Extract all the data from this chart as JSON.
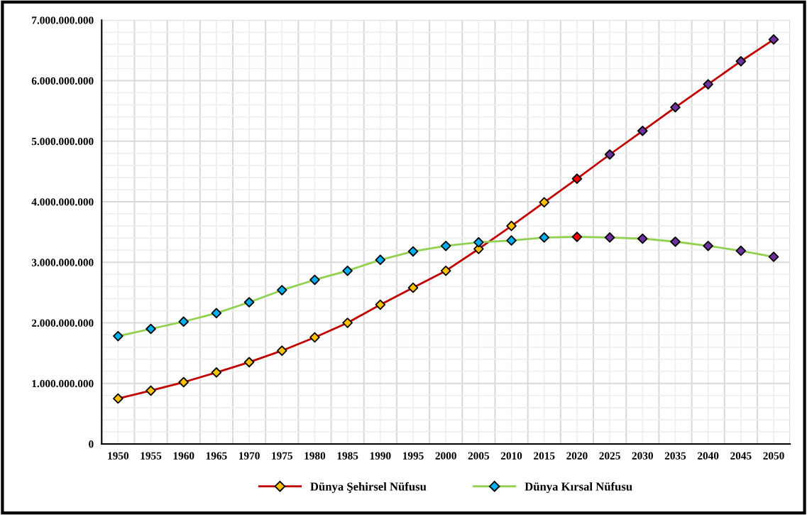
{
  "chart_data": {
    "type": "line",
    "categories": [
      "1950",
      "1955",
      "1960",
      "1965",
      "1970",
      "1975",
      "1980",
      "1985",
      "1990",
      "1995",
      "2000",
      "2005",
      "2010",
      "2015",
      "2020",
      "2025",
      "2030",
      "2035",
      "2040",
      "2045",
      "2050"
    ],
    "series": [
      {
        "name": "Dünya Şehirsel Nüfusu",
        "color": "#c00000",
        "colors": [
          "#ffc000",
          "#ffc000",
          "#ffc000",
          "#ffc000",
          "#ffc000",
          "#ffc000",
          "#ffc000",
          "#ffc000",
          "#ffc000",
          "#ffc000",
          "#ffc000",
          "#ffc000",
          "#ffc000",
          "#ffc000",
          "#ff0000",
          "#7030a0",
          "#7030a0",
          "#7030a0",
          "#7030a0",
          "#7030a0",
          "#7030a0"
        ],
        "values": [
          750000000,
          880000000,
          1020000000,
          1180000000,
          1350000000,
          1540000000,
          1760000000,
          2000000000,
          2300000000,
          2580000000,
          2860000000,
          3220000000,
          3600000000,
          3990000000,
          4380000000,
          4780000000,
          5170000000,
          5560000000,
          5940000000,
          6320000000,
          6680000000
        ]
      },
      {
        "name": "Dünya Kırsal Nüfusu",
        "color": "#92d050",
        "colors": [
          "#00b0f0",
          "#00b0f0",
          "#00b0f0",
          "#00b0f0",
          "#00b0f0",
          "#00b0f0",
          "#00b0f0",
          "#00b0f0",
          "#00b0f0",
          "#00b0f0",
          "#00b0f0",
          "#00b0f0",
          "#00b0f0",
          "#00b0f0",
          "#ff0000",
          "#7030a0",
          "#7030a0",
          "#7030a0",
          "#7030a0",
          "#7030a0",
          "#7030a0"
        ],
        "values": [
          1780000000,
          1900000000,
          2020000000,
          2160000000,
          2340000000,
          2540000000,
          2710000000,
          2860000000,
          3040000000,
          3180000000,
          3270000000,
          3330000000,
          3360000000,
          3410000000,
          3420000000,
          3410000000,
          3390000000,
          3340000000,
          3270000000,
          3190000000,
          3090000000
        ]
      }
    ],
    "ylim": [
      0,
      7000000000
    ],
    "yticks": [
      {
        "value": 0,
        "label": "0"
      },
      {
        "value": 1000000000,
        "label": "1.000.000.000"
      },
      {
        "value": 2000000000,
        "label": "2.000.000.000"
      },
      {
        "value": 3000000000,
        "label": "3.000.000.000"
      },
      {
        "value": 4000000000,
        "label": "4.000.000.000"
      },
      {
        "value": 5000000000,
        "label": "5.000.000.000"
      },
      {
        "value": 6000000000,
        "label": "6.000.000.000"
      },
      {
        "value": 7000000000,
        "label": "7.000.000.000"
      }
    ],
    "grid": true,
    "legend": "bottom",
    "marker": "diamond",
    "line_style": "solid"
  }
}
